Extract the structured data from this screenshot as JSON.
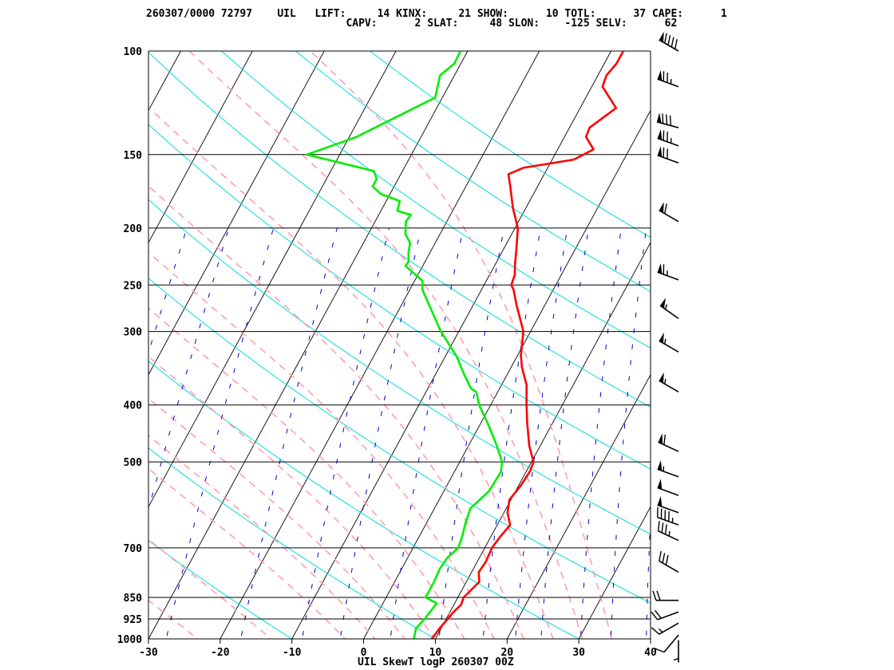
{
  "header": {
    "line1": "260307/0000 72797    UIL   LIFT:     14 KINX:     21 SHOW:      10 TOTL:      37 CAPE:      1",
    "line2": "                                CAPV:      2 SLAT:     48 SLON:    -125 SELV:      62"
  },
  "chart_data": {
    "type": "line",
    "title": "UIL SkewT logP 260307 00Z",
    "xlabel": "",
    "ylabel": "",
    "x_ticks": [
      "-30",
      "-20",
      "-10",
      "0",
      "10",
      "20",
      "30",
      "40"
    ],
    "xlim": [
      -30,
      40
    ],
    "pressure_levels": [
      100,
      150,
      200,
      250,
      300,
      400,
      500,
      700,
      850,
      925,
      1000
    ],
    "pressure_labels": [
      "100",
      "150",
      "200",
      "250",
      "300",
      "400",
      "500",
      "700",
      "850",
      "925",
      "1000"
    ],
    "plim": [
      1000,
      100
    ],
    "log_scale_y": true,
    "skew_deg_per_decade": 44.5,
    "series": [
      {
        "name": "",
        "color": "#ff0000",
        "role": "temperature",
        "points": [
          [
            1000,
            9.5
          ],
          [
            960,
            9.8
          ],
          [
            925,
            10.2
          ],
          [
            900,
            10.5
          ],
          [
            875,
            11.0
          ],
          [
            850,
            10.8
          ],
          [
            800,
            11.8
          ],
          [
            770,
            11.0
          ],
          [
            740,
            11.2
          ],
          [
            700,
            11.0
          ],
          [
            670,
            11.3
          ],
          [
            640,
            11.8
          ],
          [
            610,
            10.5
          ],
          [
            580,
            9.8
          ],
          [
            550,
            10.3
          ],
          [
            520,
            10.5
          ],
          [
            500,
            10.3
          ],
          [
            470,
            8.5
          ],
          [
            430,
            6.5
          ],
          [
            400,
            5.0
          ],
          [
            370,
            3.5
          ],
          [
            345,
            1.5
          ],
          [
            330,
            0.5
          ],
          [
            300,
            -1.0
          ],
          [
            270,
            -4.0
          ],
          [
            255,
            -5.5
          ],
          [
            250,
            -6.2
          ],
          [
            240,
            -6.5
          ],
          [
            230,
            -7.3
          ],
          [
            220,
            -8.0
          ],
          [
            200,
            -9.6
          ],
          [
            185,
            -11.8
          ],
          [
            170,
            -13.8
          ],
          [
            162,
            -15.0
          ],
          [
            158,
            -13.4
          ],
          [
            153,
            -7.0
          ],
          [
            147,
            -5.0
          ],
          [
            140,
            -7.0
          ],
          [
            135,
            -7.2
          ],
          [
            125,
            -5.0
          ],
          [
            115,
            -8.5
          ],
          [
            110,
            -8.8
          ],
          [
            105,
            -8.3
          ],
          [
            100,
            -8.3
          ]
        ]
      },
      {
        "name": "",
        "color": "#00ee00",
        "role": "dewpoint",
        "points": [
          [
            1000,
            7.0
          ],
          [
            960,
            6.5
          ],
          [
            925,
            7.0
          ],
          [
            870,
            7.5
          ],
          [
            850,
            5.5
          ],
          [
            800,
            5.5
          ],
          [
            760,
            5.3
          ],
          [
            730,
            5.5
          ],
          [
            700,
            6.3
          ],
          [
            670,
            6.0
          ],
          [
            640,
            5.5
          ],
          [
            600,
            5.0
          ],
          [
            560,
            6.3
          ],
          [
            520,
            6.5
          ],
          [
            500,
            5.9
          ],
          [
            470,
            4.0
          ],
          [
            430,
            1.0
          ],
          [
            400,
            -1.6
          ],
          [
            380,
            -3.0
          ],
          [
            375,
            -4.0
          ],
          [
            355,
            -6.0
          ],
          [
            330,
            -8.5
          ],
          [
            300,
            -12.5
          ],
          [
            270,
            -16.2
          ],
          [
            255,
            -18.2
          ],
          [
            246,
            -18.9
          ],
          [
            232,
            -22.4
          ],
          [
            228,
            -22.3
          ],
          [
            220,
            -23.0
          ],
          [
            212,
            -23.5
          ],
          [
            205,
            -24.8
          ],
          [
            195,
            -25.7
          ],
          [
            190,
            -25.5
          ],
          [
            187,
            -27.7
          ],
          [
            180,
            -28.1
          ],
          [
            175,
            -31.3
          ],
          [
            170,
            -33.0
          ],
          [
            165,
            -33.0
          ],
          [
            160,
            -34.0
          ],
          [
            150,
            -44.6
          ],
          [
            140,
            -39.0
          ],
          [
            120,
            -31.0
          ],
          [
            110,
            -32.0
          ],
          [
            105,
            -30.9
          ],
          [
            100,
            -31.0
          ]
        ]
      }
    ],
    "winds": [
      {
        "p": 100,
        "dir": 300,
        "spd": 90
      },
      {
        "p": 115,
        "dir": 290,
        "spd": 75
      },
      {
        "p": 135,
        "dir": 285,
        "spd": 80
      },
      {
        "p": 145,
        "dir": 290,
        "spd": 75
      },
      {
        "p": 155,
        "dir": 290,
        "spd": 70
      },
      {
        "p": 195,
        "dir": 300,
        "spd": 60
      },
      {
        "p": 245,
        "dir": 290,
        "spd": 65
      },
      {
        "p": 285,
        "dir": 305,
        "spd": 55
      },
      {
        "p": 325,
        "dir": 300,
        "spd": 55
      },
      {
        "p": 380,
        "dir": 300,
        "spd": 55
      },
      {
        "p": 480,
        "dir": 295,
        "spd": 60
      },
      {
        "p": 530,
        "dir": 290,
        "spd": 55
      },
      {
        "p": 570,
        "dir": 290,
        "spd": 50
      },
      {
        "p": 610,
        "dir": 290,
        "spd": 50
      },
      {
        "p": 640,
        "dir": 290,
        "spd": 45
      },
      {
        "p": 680,
        "dir": 295,
        "spd": 35
      },
      {
        "p": 770,
        "dir": 300,
        "spd": 30
      },
      {
        "p": 860,
        "dir": 270,
        "spd": 20
      },
      {
        "p": 900,
        "dir": 250,
        "spd": 20
      },
      {
        "p": 940,
        "dir": 240,
        "spd": 15
      },
      {
        "p": 985,
        "dir": 220,
        "spd": 10
      },
      {
        "p": 1005,
        "dir": 180,
        "spd": 5
      }
    ],
    "background": {
      "isotherm_color": "#000000",
      "dry_adiabat_color": "#00dddd",
      "moist_adiabat_color": "#ff9eb0",
      "mixing_ratio_color": "#0000cc",
      "isobar_color": "#000000"
    }
  }
}
